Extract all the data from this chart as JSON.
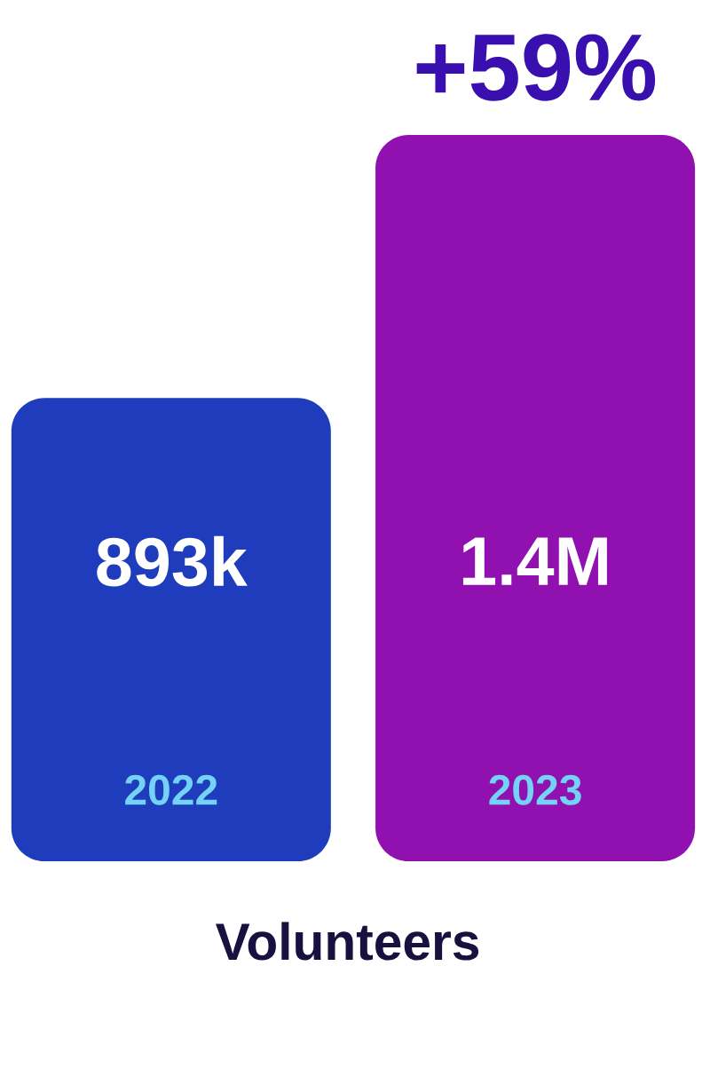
{
  "chart_data": {
    "type": "bar",
    "categories": [
      "2022",
      "2023"
    ],
    "values": [
      893000,
      1400000
    ],
    "value_labels": [
      "893k",
      "1.4M"
    ],
    "colors": [
      "#1e3cbc",
      "#9010b0"
    ],
    "xlabel": "Volunteers",
    "annotations": [
      "+59%"
    ]
  }
}
